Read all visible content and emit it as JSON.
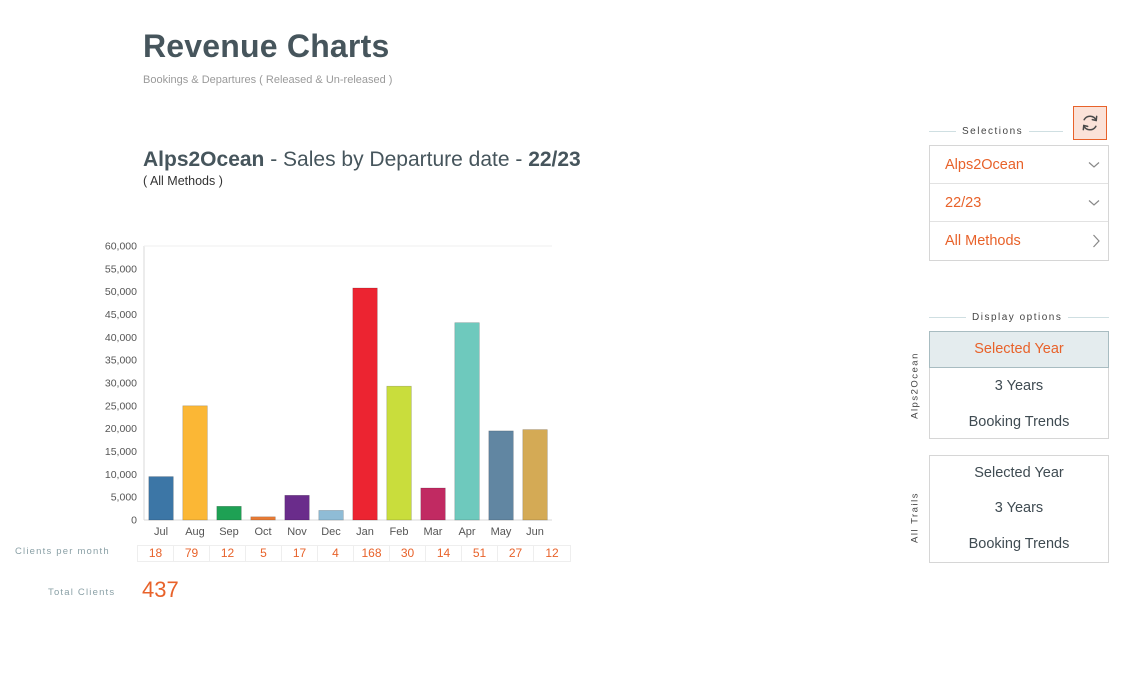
{
  "header": {
    "title": "Revenue Charts",
    "subtitle": "Bookings & Departures ( Released & Un-released )"
  },
  "chart_header": {
    "brand": "Alps2Ocean",
    "middle": " - Sales by Departure date - ",
    "season": "22/23",
    "method_note": "( All Methods )"
  },
  "chart_data": {
    "type": "bar",
    "categories": [
      "Jul",
      "Aug",
      "Sep",
      "Oct",
      "Nov",
      "Dec",
      "Jan",
      "Feb",
      "Mar",
      "Apr",
      "May",
      "Jun"
    ],
    "values": [
      9500,
      25000,
      3000,
      700,
      5400,
      2100,
      50800,
      29300,
      7000,
      43200,
      19500,
      19800
    ],
    "colors": [
      "#3c76a6",
      "#fbb735",
      "#1ea154",
      "#e87b35",
      "#6a2c8b",
      "#8fbcd6",
      "#ec2431",
      "#c9dd3c",
      "#c12a62",
      "#6ec9bd",
      "#6186a2",
      "#d4aa55"
    ],
    "ylim": [
      0,
      60000
    ],
    "yticks": [
      0,
      5000,
      10000,
      15000,
      20000,
      25000,
      30000,
      35000,
      40000,
      45000,
      50000,
      55000,
      60000
    ],
    "ytick_labels": [
      "0",
      "5,000",
      "10,000",
      "15,000",
      "20,000",
      "25,000",
      "30,000",
      "35,000",
      "40,000",
      "45,000",
      "50,000",
      "55,000",
      "60,000"
    ],
    "grid": false,
    "title": "",
    "xlabel": "",
    "ylabel": ""
  },
  "clients": {
    "label": "Clients per month",
    "values": [
      "18",
      "79",
      "12",
      "5",
      "17",
      "4",
      "168",
      "30",
      "14",
      "51",
      "27",
      "12"
    ],
    "total_label": "Total Clients",
    "total": "437"
  },
  "selections": {
    "caption": "Selections",
    "trail": "Alps2Ocean",
    "season": "22/23",
    "method": "All Methods",
    "refresh_icon": "refresh-icon"
  },
  "display_options": {
    "caption": "Display options",
    "group1": {
      "label": "Alps2Ocean",
      "items": [
        "Selected Year",
        "3 Years",
        "Booking Trends"
      ],
      "active_index": 0
    },
    "group2": {
      "label": "All Trails",
      "items": [
        "Selected Year",
        "3 Years",
        "Booking Trends"
      ]
    }
  },
  "colors": {
    "accent": "#e8622a",
    "heading": "#46555c",
    "muted_label": "#8aa0a6"
  }
}
